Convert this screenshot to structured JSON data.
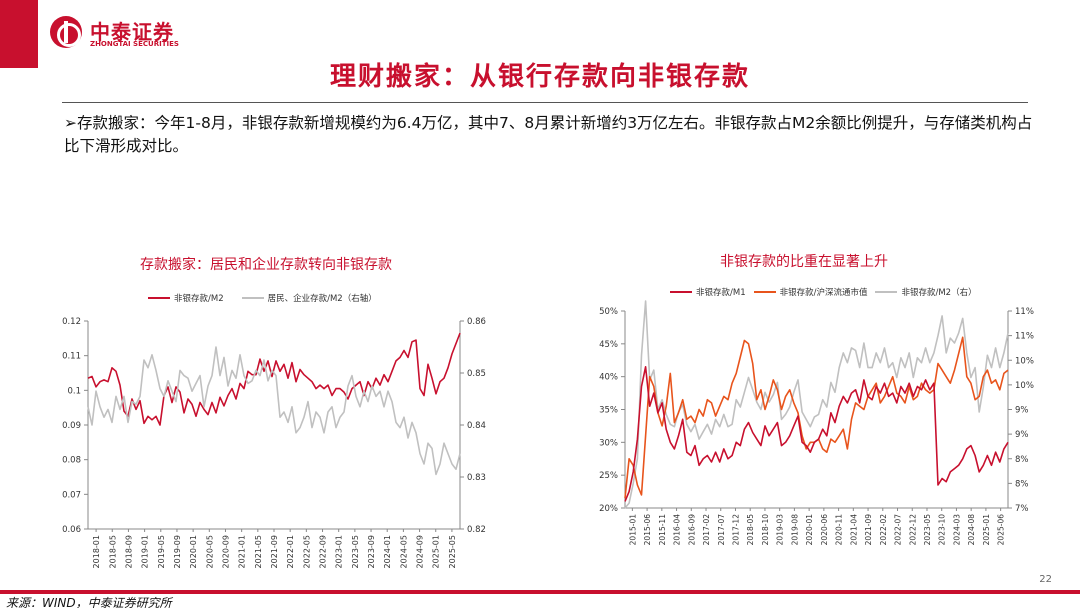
{
  "brand": {
    "name_cn": "中泰证券",
    "name_en": "ZHONGTAI SECURITIES",
    "color": "#c8102e"
  },
  "slide": {
    "title": "理财搬家：从银行存款向非银存款",
    "bullet": "存款搬家：今年1-8月，非银存款新增规模约为6.4万亿，其中7、8月累计新增约3万亿左右。非银存款占M2余额比例提升，与存储类机构占比下滑形成对比。",
    "page_number": "22",
    "source": "来源：WIND，中泰证券研究所"
  },
  "chart_data": [
    {
      "type": "line",
      "title": "存款搬家：居民和企业存款转向非银存款",
      "series": [
        {
          "name": "非银存款/M2",
          "axis": "left",
          "color": "#c8102e",
          "values": [
            0.1035,
            0.104,
            0.101,
            0.1025,
            0.103,
            0.1025,
            0.1065,
            0.1055,
            0.1015,
            0.094,
            0.0925,
            0.0975,
            0.0945,
            0.097,
            0.0905,
            0.0925,
            0.0915,
            0.0925,
            0.09,
            0.0985,
            0.101,
            0.0965,
            0.101,
            0.0995,
            0.0935,
            0.0975,
            0.096,
            0.0925,
            0.0965,
            0.0945,
            0.093,
            0.0965,
            0.0935,
            0.098,
            0.0955,
            0.0985,
            0.1005,
            0.0975,
            0.102,
            0.1005,
            0.1055,
            0.1045,
            0.1045,
            0.109,
            0.1055,
            0.1085,
            0.104,
            0.1085,
            0.1055,
            0.1075,
            0.1035,
            0.108,
            0.1025,
            0.106,
            0.1045,
            0.1035,
            0.1025,
            0.1005,
            0.1015,
            0.1005,
            0.1015,
            0.0985,
            0.1005,
            0.1005,
            0.0995,
            0.0975,
            0.1005,
            0.1015,
            0.1025,
            0.0985,
            0.1025,
            0.1005,
            0.1035,
            0.1015,
            0.1045,
            0.1025,
            0.1055,
            0.1085,
            0.1095,
            0.1115,
            0.1095,
            0.114,
            0.1145,
            0.1005,
            0.0985,
            0.1075,
            0.1035,
            0.099,
            0.1025,
            0.1035,
            0.1065,
            0.1105,
            0.1135,
            0.1165
          ]
        },
        {
          "name": "居民、企业存款/M2（右轴）",
          "axis": "right",
          "color": "#c0c0c0",
          "values": [
            0.8435,
            0.84,
            0.8465,
            0.8435,
            0.8415,
            0.843,
            0.8405,
            0.8455,
            0.843,
            0.8455,
            0.8405,
            0.8445,
            0.844,
            0.8455,
            0.8525,
            0.851,
            0.8535,
            0.8505,
            0.847,
            0.8455,
            0.8485,
            0.8465,
            0.8445,
            0.8505,
            0.8495,
            0.849,
            0.8465,
            0.848,
            0.8495,
            0.8435,
            0.8475,
            0.8495,
            0.855,
            0.8495,
            0.853,
            0.8475,
            0.8505,
            0.849,
            0.8535,
            0.8495,
            0.848,
            0.8485,
            0.8505,
            0.8495,
            0.8525,
            0.8485,
            0.8505,
            0.8495,
            0.8415,
            0.8425,
            0.8405,
            0.8435,
            0.8385,
            0.8395,
            0.8415,
            0.8445,
            0.8395,
            0.8425,
            0.8415,
            0.8385,
            0.8425,
            0.8435,
            0.8395,
            0.8415,
            0.8425,
            0.8475,
            0.8495,
            0.8455,
            0.8435,
            0.8465,
            0.8445,
            0.8475,
            0.8455,
            0.8465,
            0.8435,
            0.8465,
            0.8445,
            0.8405,
            0.8395,
            0.8415,
            0.8375,
            0.8405,
            0.8385,
            0.8345,
            0.8325,
            0.8365,
            0.8355,
            0.8305,
            0.8325,
            0.8365,
            0.8345,
            0.8325,
            0.8315,
            0.8345
          ]
        }
      ],
      "x_tick_labels": [
        "2018-01",
        "2018-05",
        "2018-09",
        "2019-01",
        "2019-05",
        "2019-09",
        "2020-01",
        "2020-05",
        "2020-09",
        "2021-01",
        "2021-05",
        "2021-09",
        "2022-01",
        "2022-05",
        "2022-09",
        "2023-01",
        "2023-05",
        "2023-09",
        "2024-01",
        "2024-05",
        "2024-09",
        "2025-01",
        "2025-05"
      ],
      "y_left": {
        "min": 0.06,
        "max": 0.12,
        "ticks": [
          "0.06",
          "0.07",
          "0.08",
          "0.09",
          "0.1",
          "0.11",
          "0.12"
        ]
      },
      "y_right": {
        "min": 0.82,
        "max": 0.86,
        "ticks": [
          "0.82",
          "0.83",
          "0.84",
          "0.85",
          "0.86"
        ]
      },
      "legend_position": "top",
      "grid": false
    },
    {
      "type": "line",
      "title": "非银存款的比重在显著上升",
      "series": [
        {
          "name": "非银存款/M1",
          "axis": "left",
          "color": "#c8102e",
          "values": [
            0.21,
            0.225,
            0.255,
            0.305,
            0.385,
            0.415,
            0.355,
            0.375,
            0.345,
            0.36,
            0.32,
            0.3,
            0.29,
            0.31,
            0.335,
            0.285,
            0.28,
            0.295,
            0.265,
            0.275,
            0.28,
            0.27,
            0.285,
            0.27,
            0.29,
            0.275,
            0.28,
            0.3,
            0.295,
            0.32,
            0.33,
            0.315,
            0.305,
            0.295,
            0.325,
            0.31,
            0.32,
            0.33,
            0.295,
            0.3,
            0.31,
            0.325,
            0.34,
            0.3,
            0.295,
            0.285,
            0.3,
            0.305,
            0.32,
            0.31,
            0.345,
            0.33,
            0.355,
            0.37,
            0.36,
            0.375,
            0.38,
            0.36,
            0.395,
            0.37,
            0.365,
            0.385,
            0.375,
            0.39,
            0.37,
            0.375,
            0.36,
            0.385,
            0.375,
            0.39,
            0.37,
            0.385,
            0.38,
            0.395,
            0.38,
            0.39,
            0.235,
            0.245,
            0.24,
            0.255,
            0.26,
            0.265,
            0.275,
            0.29,
            0.295,
            0.28,
            0.255,
            0.265,
            0.28,
            0.265,
            0.285,
            0.27,
            0.29,
            0.3
          ]
        },
        {
          "name": "非银存款/沪深流通市值",
          "axis": "left",
          "color": "#e8541c",
          "values": [
            0.215,
            0.275,
            0.265,
            0.235,
            0.22,
            0.31,
            0.4,
            0.385,
            0.345,
            0.325,
            0.355,
            0.405,
            0.33,
            0.345,
            0.365,
            0.335,
            0.34,
            0.33,
            0.35,
            0.34,
            0.365,
            0.36,
            0.34,
            0.355,
            0.37,
            0.365,
            0.39,
            0.405,
            0.43,
            0.455,
            0.45,
            0.42,
            0.365,
            0.38,
            0.35,
            0.37,
            0.395,
            0.38,
            0.35,
            0.37,
            0.38,
            0.36,
            0.345,
            0.31,
            0.29,
            0.3,
            0.3,
            0.305,
            0.29,
            0.285,
            0.305,
            0.3,
            0.31,
            0.32,
            0.29,
            0.335,
            0.36,
            0.355,
            0.35,
            0.37,
            0.38,
            0.39,
            0.36,
            0.37,
            0.385,
            0.4,
            0.375,
            0.37,
            0.36,
            0.385,
            0.365,
            0.37,
            0.39,
            0.38,
            0.375,
            0.38,
            0.42,
            0.41,
            0.4,
            0.39,
            0.41,
            0.435,
            0.46,
            0.4,
            0.39,
            0.365,
            0.37,
            0.4,
            0.41,
            0.39,
            0.395,
            0.38,
            0.405,
            0.41
          ]
        },
        {
          "name": "非银存款/M2（右）",
          "axis": "right",
          "color": "#c0c0c0",
          "values": [
            0.07,
            0.071,
            0.075,
            0.08,
            0.101,
            0.112,
            0.096,
            0.098,
            0.09,
            0.092,
            0.089,
            0.087,
            0.0865,
            0.0895,
            0.091,
            0.087,
            0.0855,
            0.087,
            0.084,
            0.0855,
            0.087,
            0.085,
            0.088,
            0.0865,
            0.089,
            0.0865,
            0.087,
            0.092,
            0.0905,
            0.0935,
            0.0965,
            0.094,
            0.0915,
            0.09,
            0.0935,
            0.0915,
            0.093,
            0.0955,
            0.088,
            0.089,
            0.0905,
            0.0935,
            0.096,
            0.0895,
            0.088,
            0.0865,
            0.0885,
            0.089,
            0.092,
            0.0905,
            0.0955,
            0.0935,
            0.0985,
            0.1015,
            0.0995,
            0.1025,
            0.102,
            0.0985,
            0.1035,
            0.0985,
            0.0985,
            0.1015,
            0.0995,
            0.1025,
            0.0985,
            0.0995,
            0.0965,
            0.1005,
            0.0985,
            0.1015,
            0.0965,
            0.1005,
            0.0995,
            0.1025,
            0.0995,
            0.1015,
            0.105,
            0.109,
            0.1015,
            0.1045,
            0.1035,
            0.1055,
            0.1085,
            0.1015,
            0.0965,
            0.0985,
            0.0895,
            0.0945,
            0.101,
            0.0985,
            0.1025,
            0.0985,
            0.1015,
            0.1055
          ]
        }
      ],
      "x_tick_labels": [
        "2015-01",
        "2015-06",
        "2015-11",
        "2016-04",
        "2016-09",
        "2017-02",
        "2017-07",
        "2017-12",
        "2018-05",
        "2018-10",
        "2019-03",
        "2019-08",
        "2020-01",
        "2020-06",
        "2020-11",
        "2021-04",
        "2021-09",
        "2022-02",
        "2022-07",
        "2022-12",
        "2023-05",
        "2023-10",
        "2024-03",
        "2024-08",
        "2025-01",
        "2025-06"
      ],
      "y_left": {
        "min": 0.2,
        "max": 0.5,
        "ticks": [
          "20%",
          "25%",
          "30%",
          "35%",
          "40%",
          "45%",
          "50%"
        ]
      },
      "y_right": {
        "min": 0.07,
        "max": 0.11,
        "ticks": [
          "7%",
          "8%",
          "8%",
          "9%",
          "9%",
          "10%",
          "10%",
          "11%",
          "11%"
        ]
      },
      "legend_position": "top",
      "grid": false
    }
  ]
}
